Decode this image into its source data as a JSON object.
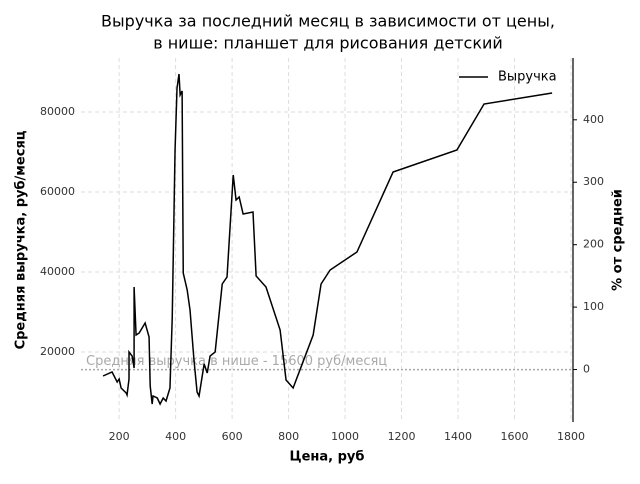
{
  "chart_data": {
    "type": "line",
    "title": [
      "Выручка за последний месяц в зависимости от цены,",
      "в нише: планшет для рисования детский"
    ],
    "x_label": "Цена, руб",
    "y_label": "Средняя выручка, руб/месяц",
    "y2_label": "% от средней",
    "x": [
      143,
      175,
      193,
      200,
      207,
      225,
      228,
      235,
      235,
      246,
      253,
      253,
      260,
      271,
      292,
      306,
      310,
      317,
      320,
      335,
      345,
      356,
      366,
      380,
      388,
      398,
      405,
      412,
      416,
      423,
      427,
      441,
      451,
      465,
      476,
      483,
      501,
      512,
      522,
      540,
      565,
      582,
      604,
      614,
      625,
      639,
      674,
      685,
      720,
      770,
      791,
      816,
      887,
      915,
      947,
      1042,
      1170,
      1396,
      1492,
      1733
    ],
    "series": [
      {
        "name": "Выручка",
        "color": "#000000",
        "values": [
          14000,
          15000,
          12500,
          13250,
          11000,
          9750,
          9250,
          13250,
          20000,
          19000,
          16000,
          36250,
          24250,
          24750,
          27250,
          23750,
          11500,
          7000,
          9000,
          8500,
          7000,
          8500,
          7750,
          11000,
          28500,
          70500,
          86000,
          89500,
          84250,
          85250,
          39750,
          35500,
          30500,
          18000,
          10000,
          9000,
          17000,
          14750,
          19000,
          20000,
          37000,
          38750,
          64250,
          58000,
          58750,
          54500,
          55000,
          39000,
          36250,
          25500,
          13000,
          11000,
          24250,
          37000,
          40500,
          45000,
          65000,
          70500,
          82000,
          84750
        ]
      }
    ],
    "reference_line": {
      "value": 15600,
      "label": "Средняя выручка в нише - 15600 руб/месяц",
      "color": "#aaaaaa"
    },
    "xlim": [
      65,
      1807
    ],
    "xticks": [
      200,
      400,
      600,
      800,
      1000,
      1200,
      1400,
      1600,
      1800
    ],
    "ylim": [
      2500,
      93500
    ],
    "yticks": [
      20000,
      40000,
      60000,
      80000
    ],
    "y2lim": [
      -84,
      499
    ],
    "y2ticks": [
      0,
      100,
      200,
      300,
      400
    ],
    "grid": true,
    "legend": "upper right"
  }
}
